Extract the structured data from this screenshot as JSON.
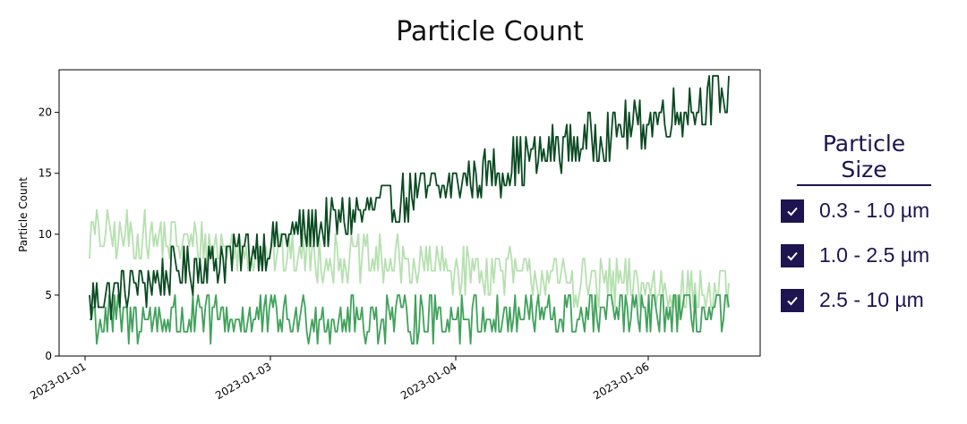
{
  "chart_data": {
    "type": "line",
    "title": "Particle Count",
    "xlabel": "",
    "ylabel": "Particle Count",
    "ylim": [
      0,
      23.5
    ],
    "yticks": [
      0,
      5,
      10,
      15,
      20
    ],
    "xticks": [
      "2023-01-01",
      "2023-01-03",
      "2023-01-04",
      "2023-01-06"
    ],
    "x_range_points": 360,
    "legend_title": "Particle Size",
    "legend_position": "right",
    "series": [
      {
        "name": "0.3 - 1.0 µm",
        "color": "#0b4a22",
        "trend_start": 4.5,
        "trend_end": 21.5,
        "noise_amplitude": 2,
        "checked": true
      },
      {
        "name": "1.0 - 2.5 µm",
        "color": "#b6e0b0",
        "trend_start": 10,
        "trend_end": 5,
        "noise_amplitude": 2,
        "checked": true
      },
      {
        "name": "2.5 - 10 µm",
        "color": "#41a25c",
        "trend_start": 3,
        "trend_end": 3.5,
        "noise_amplitude": 2,
        "checked": true
      }
    ]
  },
  "legend": {
    "title": "Particle Size",
    "items": [
      {
        "label": "0.3 - 1.0 µm"
      },
      {
        "label": "1.0 - 2.5 µm"
      },
      {
        "label": "2.5 - 10 µm"
      }
    ]
  }
}
